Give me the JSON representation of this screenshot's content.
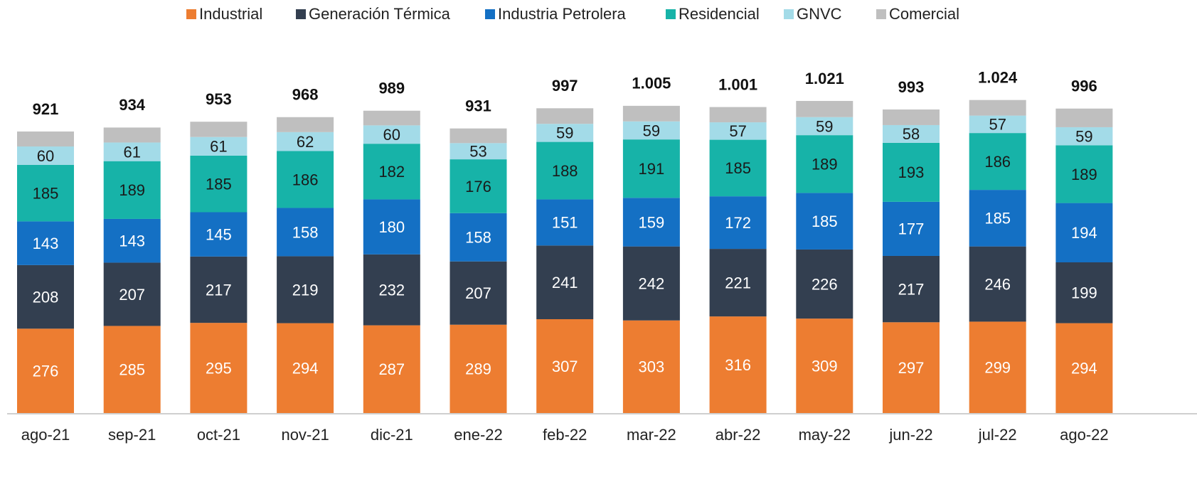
{
  "chart_data": {
    "type": "stacked_bar",
    "categories": [
      "ago-21",
      "sep-21",
      "oct-21",
      "nov-21",
      "dic-21",
      "ene-22",
      "feb-22",
      "mar-22",
      "abr-22",
      "may-22",
      "jun-22",
      "jul-22",
      "ago-22"
    ],
    "series": [
      {
        "name": "Industrial",
        "color": "#ed7d31",
        "label_color": "#ffffff",
        "values": [
          276,
          285,
          295,
          294,
          287,
          289,
          307,
          303,
          316,
          309,
          297,
          299,
          294
        ]
      },
      {
        "name": "Generación Térmica",
        "color": "#333f50",
        "label_color": "#ffffff",
        "values": [
          208,
          207,
          217,
          219,
          232,
          207,
          241,
          242,
          221,
          226,
          217,
          246,
          199
        ]
      },
      {
        "name": "Industria Petrolera",
        "color": "#1470c4",
        "label_color": "#ffffff",
        "values": [
          143,
          143,
          145,
          158,
          180,
          158,
          151,
          159,
          172,
          185,
          177,
          185,
          194
        ]
      },
      {
        "name": "Residencial",
        "color": "#17b3a8",
        "label_color": "#1a1a1a",
        "values": [
          185,
          189,
          185,
          186,
          182,
          176,
          188,
          191,
          185,
          189,
          193,
          186,
          189
        ]
      },
      {
        "name": "GNVC",
        "color": "#a3dbe8",
        "label_color": "#1a1a1a",
        "values": [
          60,
          61,
          61,
          62,
          60,
          53,
          59,
          59,
          57,
          59,
          58,
          57,
          59
        ]
      },
      {
        "name": "Comercial",
        "color": "#bfbfbf",
        "values": [
          49,
          49,
          50,
          49,
          48,
          48,
          51,
          51,
          50,
          53,
          51,
          51,
          61
        ]
      }
    ],
    "totals": {
      "values": [
        921,
        934,
        953,
        968,
        989,
        931,
        997,
        1005,
        1001,
        1021,
        993,
        1024,
        996
      ],
      "value_labels": [
        "921",
        "934",
        "953",
        "968",
        "989",
        "931",
        "997",
        "1.005",
        "1.001",
        "1.021",
        "993",
        "1.024",
        "996"
      ]
    }
  }
}
